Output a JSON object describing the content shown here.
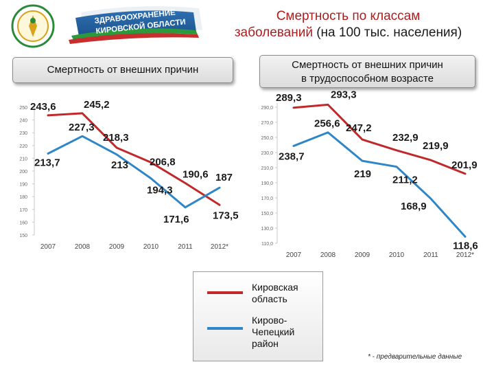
{
  "logo": {
    "line1": "ЗДРАВООХРАНЕНИЕ",
    "line2": "КИРОВСКОЙ ОБЛАСТИ"
  },
  "header": {
    "title_line1": "Смертность по классам",
    "title_line2_a": "заболеваний",
    "title_line2_b": " (на 100 тыс. населения)"
  },
  "colors": {
    "kirov": "#c0282a",
    "kchr": "#2e86c8"
  },
  "legend": {
    "items": [
      {
        "key": "kirov",
        "label": "Кировская\nобласть"
      },
      {
        "key": "kchr",
        "label": "Кирово-\nЧепецкий\nрайон"
      }
    ]
  },
  "footnote": "* - предварительные данные",
  "chart_data": [
    {
      "type": "line",
      "title": "Смертность от внешних причин",
      "categories": [
        "2007",
        "2008",
        "2009",
        "2010",
        "2011",
        "2012*"
      ],
      "ylim": [
        150,
        250
      ],
      "yticks": [
        "150",
        "160",
        "170",
        "180",
        "190",
        "200",
        "210",
        "220",
        "230",
        "240",
        "250"
      ],
      "grid": false,
      "series": [
        {
          "name": "Кировская область",
          "color_key": "kirov",
          "values": [
            243.6,
            245.2,
            218.3,
            206.8,
            190.6,
            173.5
          ],
          "labels": [
            "243,6",
            "245,2",
            "218,3",
            "206,8",
            "190,6",
            "173,5"
          ]
        },
        {
          "name": "Кирово-Чепецкий район",
          "color_key": "kchr",
          "values": [
            213.7,
            227.3,
            213,
            194.3,
            171.6,
            187
          ],
          "labels": [
            "213,7",
            "227,3",
            "213",
            "194,3",
            "171,6",
            "187"
          ]
        }
      ]
    },
    {
      "type": "line",
      "title": "Смертность от внешних причин в трудоспособном возрасте",
      "categories": [
        "2007",
        "2008",
        "2009",
        "2010",
        "2011",
        "2012*"
      ],
      "ylim": [
        110,
        290
      ],
      "yticks": [
        "110,0",
        "130,0",
        "150,0",
        "170,0",
        "190,0",
        "210,0",
        "230,0",
        "250,0",
        "270,0",
        "290,0"
      ],
      "grid": false,
      "series": [
        {
          "name": "Кировская область",
          "color_key": "kirov",
          "values": [
            289.3,
            293.3,
            247.2,
            232.9,
            219.9,
            201.9
          ],
          "labels": [
            "289,3",
            "293,3",
            "247,2",
            "232,9",
            "219,9",
            "201,9"
          ]
        },
        {
          "name": "Кирово-Чепецкий район",
          "color_key": "kchr",
          "values": [
            238.7,
            256.6,
            219,
            211.2,
            168.9,
            118.6
          ],
          "labels": [
            "238,7",
            "256,6",
            "219",
            "211,2",
            "168,9",
            "118,6"
          ]
        }
      ]
    }
  ]
}
